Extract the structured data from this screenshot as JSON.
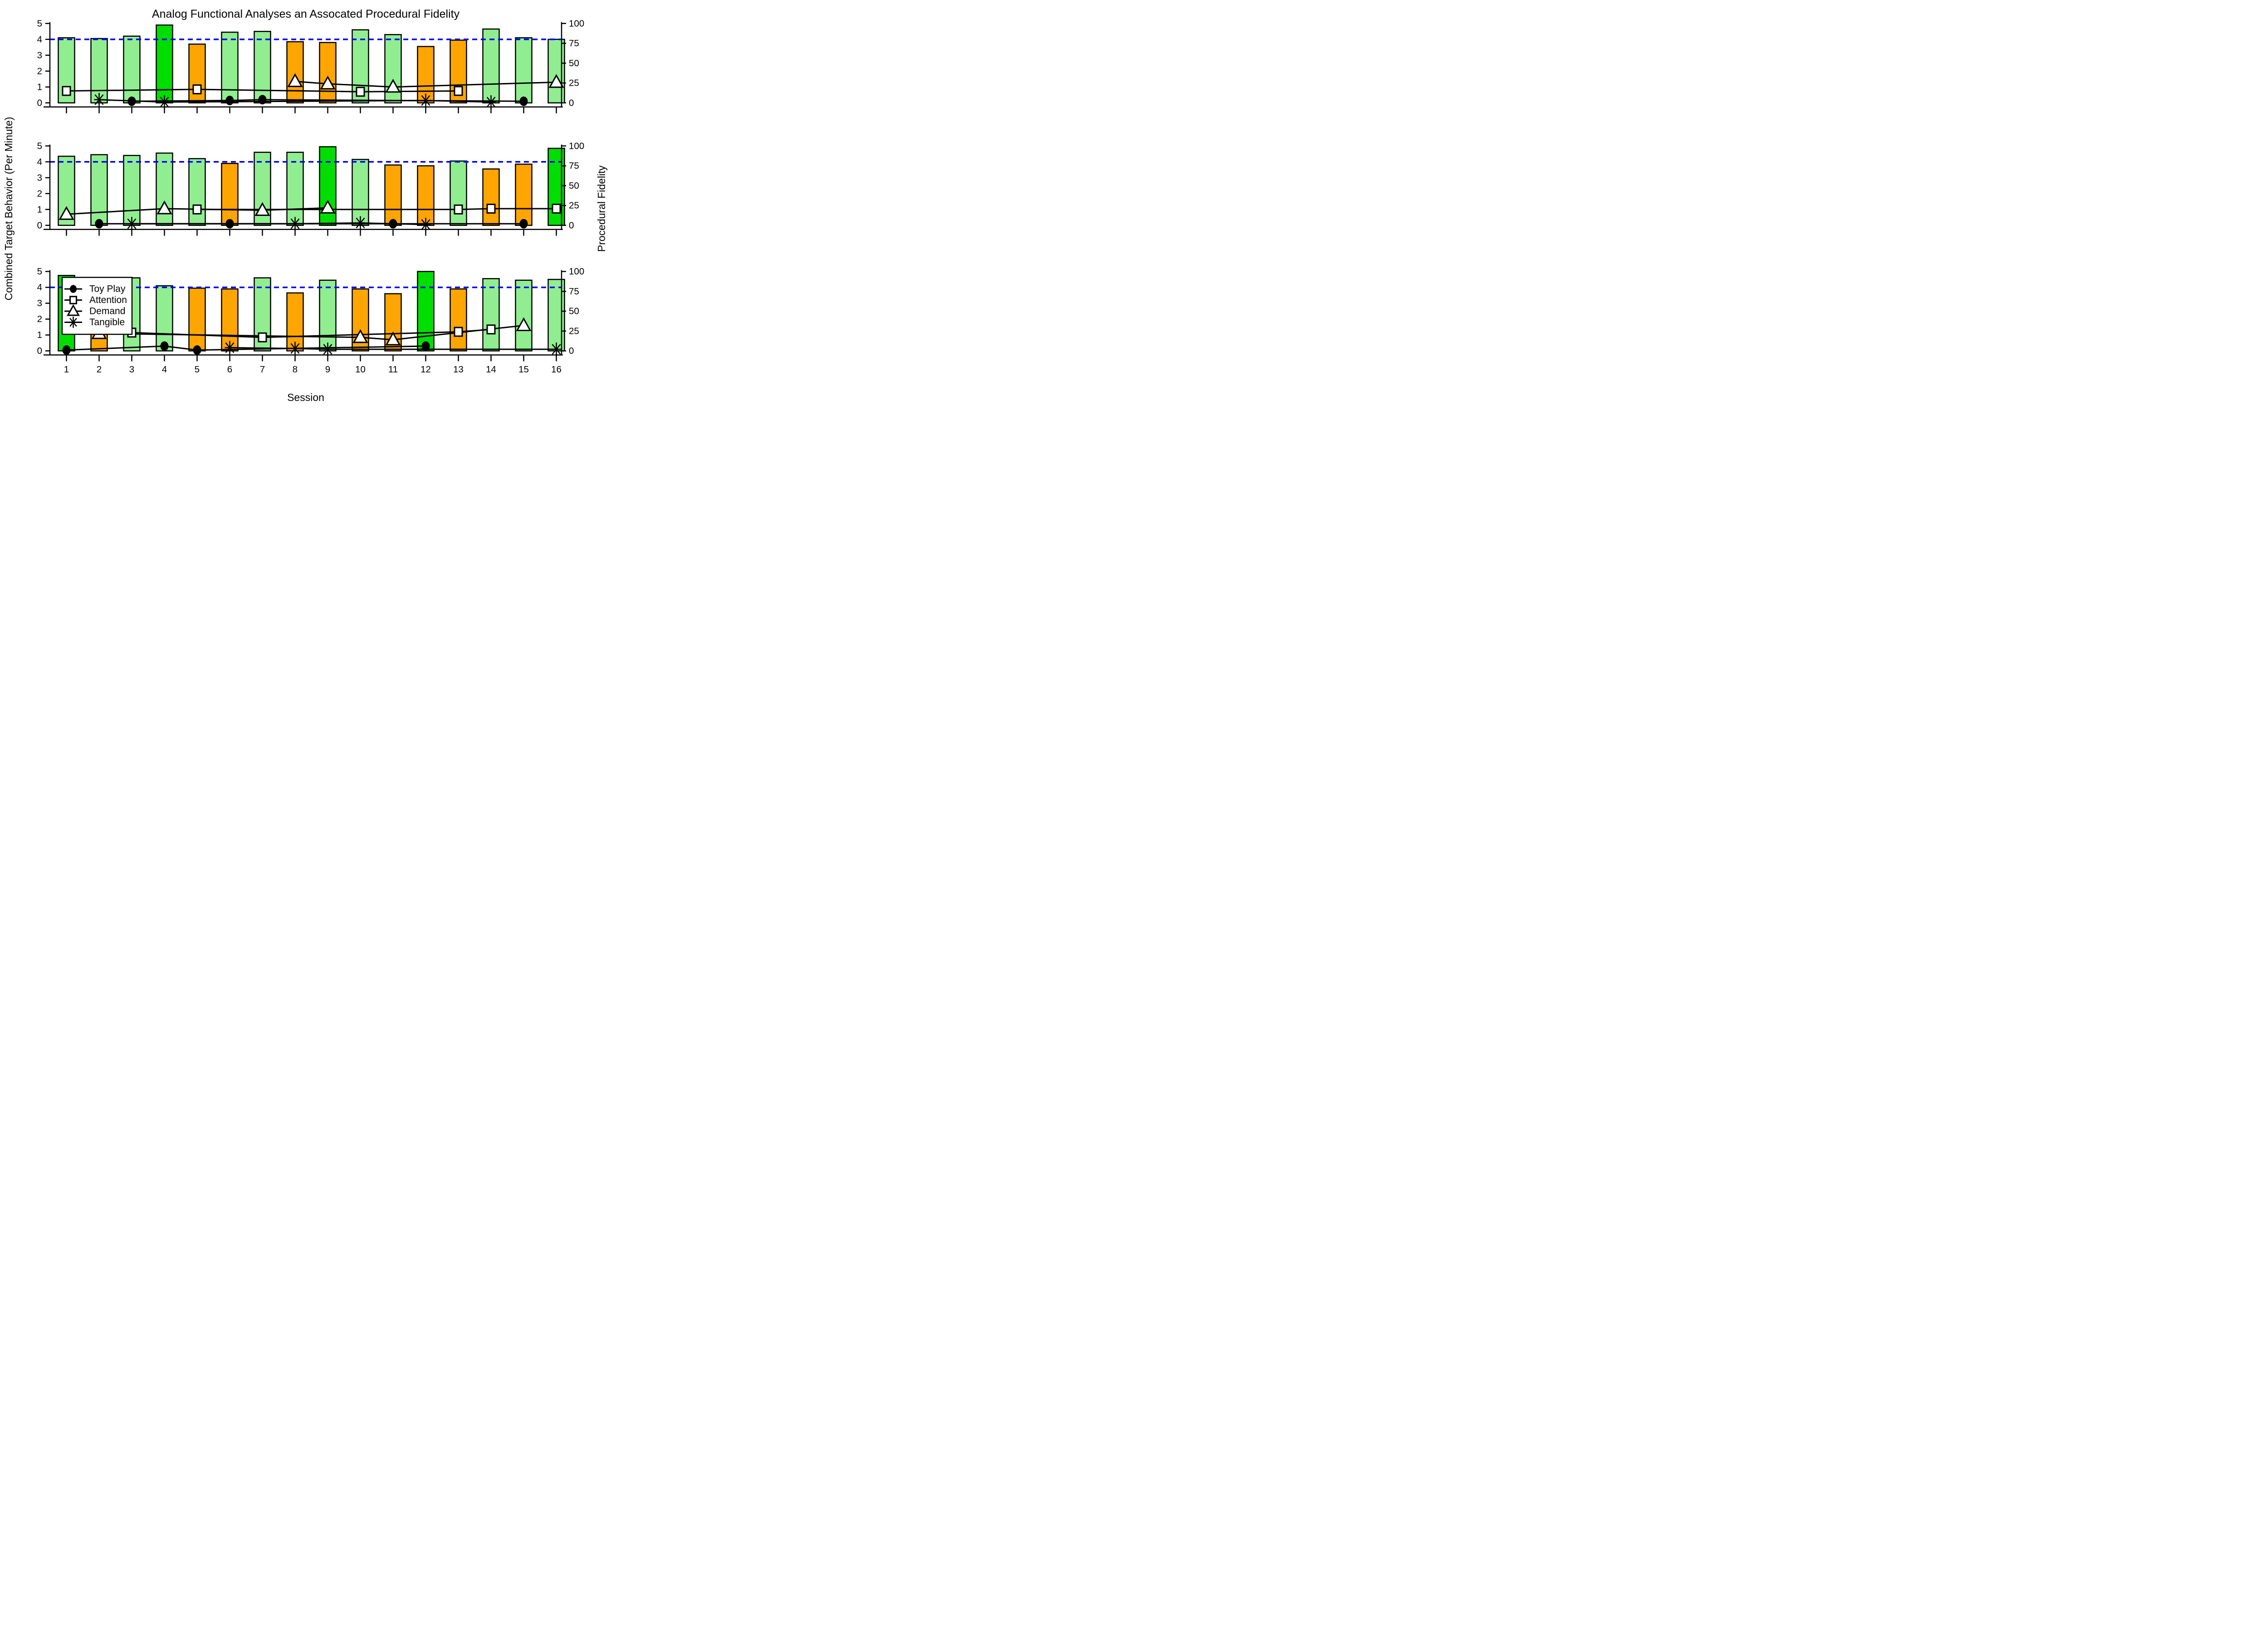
{
  "title": "Analog Functional Analyses an Assocated Procedural Fidelity",
  "axes": {
    "x_label": "Session",
    "y_left_label": "Combined Target Behavior (Per Minute)",
    "y_right_label": "Procedural Fidelity",
    "x_ticks": [
      "1",
      "2",
      "3",
      "4",
      "5",
      "6",
      "7",
      "8",
      "9",
      "10",
      "11",
      "12",
      "13",
      "14",
      "15",
      "16"
    ],
    "y_left_ticks": [
      0,
      1,
      2,
      3,
      4,
      5
    ],
    "y_right_ticks": [
      0,
      25,
      50,
      75,
      100
    ]
  },
  "colors": {
    "baseline_bar": "#90EE90",
    "highlight_bar": "#00DE00",
    "test_bar": "#FFA500",
    "criterion_line": "#0000FF",
    "series_line": "#000000"
  },
  "chart_data": {
    "type": "bar",
    "x": [
      1,
      2,
      3,
      4,
      5,
      6,
      7,
      8,
      9,
      10,
      11,
      12,
      13,
      14,
      15,
      16
    ],
    "ylim_left": [
      0,
      5
    ],
    "ylim_right": [
      0,
      100
    ],
    "criterion_value": 4,
    "legend": {
      "position": "panel-3-upper-left",
      "items": [
        {
          "label": "Toy Play",
          "marker": "circle"
        },
        {
          "label": "Attention",
          "marker": "square"
        },
        {
          "label": "Demand",
          "marker": "triangle"
        },
        {
          "label": "Tangible",
          "marker": "asterisk"
        }
      ]
    },
    "panels": [
      {
        "id": "panel-1",
        "bars": {
          "values": [
            4.1,
            4.05,
            4.2,
            4.9,
            3.7,
            4.45,
            4.5,
            3.85,
            3.8,
            4.6,
            4.3,
            3.55,
            3.95,
            4.65,
            4.1,
            4.0
          ],
          "colors": [
            "green",
            "green",
            "green",
            "bright",
            "orange",
            "green",
            "green",
            "orange",
            "orange",
            "green",
            "green",
            "orange",
            "orange",
            "green",
            "green",
            "green"
          ]
        },
        "series": [
          {
            "name": "Toy Play",
            "marker": "circle",
            "points": [
              [
                3,
                0.1
              ],
              [
                6,
                0.15
              ],
              [
                7,
                0.2
              ],
              [
                15,
                0.1
              ]
            ]
          },
          {
            "name": "Attention",
            "marker": "square",
            "points": [
              [
                1,
                0.75
              ],
              [
                5,
                0.85
              ],
              [
                10,
                0.7
              ],
              [
                13,
                0.75
              ]
            ]
          },
          {
            "name": "Demand",
            "marker": "triangle",
            "points": [
              [
                8,
                1.35
              ],
              [
                9,
                1.2
              ],
              [
                11,
                1.0
              ],
              [
                16,
                1.3
              ]
            ]
          },
          {
            "name": "Tangible",
            "marker": "asterisk",
            "points": [
              [
                2,
                0.2
              ],
              [
                4,
                0.05
              ],
              [
                12,
                0.15
              ],
              [
                14,
                0.05
              ]
            ]
          }
        ]
      },
      {
        "id": "panel-2",
        "bars": {
          "values": [
            4.35,
            4.45,
            4.4,
            4.55,
            4.2,
            3.9,
            4.6,
            4.6,
            4.95,
            4.15,
            3.8,
            3.75,
            4.05,
            3.55,
            3.85,
            4.85
          ],
          "colors": [
            "green",
            "green",
            "green",
            "green",
            "green",
            "orange",
            "green",
            "green",
            "bright",
            "green",
            "orange",
            "orange",
            "green",
            "orange",
            "orange",
            "bright"
          ]
        },
        "series": [
          {
            "name": "Toy Play",
            "marker": "circle",
            "points": [
              [
                2,
                0.1
              ],
              [
                6,
                0.1
              ],
              [
                11,
                0.1
              ],
              [
                15,
                0.1
              ]
            ]
          },
          {
            "name": "Attention",
            "marker": "square",
            "points": [
              [
                5,
                1.0
              ],
              [
                13,
                1.0
              ],
              [
                14,
                1.05
              ],
              [
                16,
                1.05
              ]
            ]
          },
          {
            "name": "Demand",
            "marker": "triangle",
            "points": [
              [
                1,
                0.7
              ],
              [
                4,
                1.05
              ],
              [
                7,
                0.95
              ],
              [
                9,
                1.1
              ]
            ]
          },
          {
            "name": "Tangible",
            "marker": "asterisk",
            "points": [
              [
                3,
                0.1
              ],
              [
                8,
                0.1
              ],
              [
                10,
                0.15
              ],
              [
                12,
                0.05
              ]
            ]
          }
        ]
      },
      {
        "id": "panel-3",
        "bars": {
          "values": [
            4.75,
            4.3,
            4.6,
            4.1,
            3.95,
            3.9,
            4.6,
            3.65,
            4.45,
            3.9,
            3.6,
            5.0,
            3.9,
            4.55,
            4.45,
            4.5
          ],
          "colors": [
            "bright",
            "orange",
            "green",
            "green",
            "orange",
            "orange",
            "green",
            "orange",
            "green",
            "orange",
            "orange",
            "bright",
            "orange",
            "green",
            "green",
            "green"
          ]
        },
        "series": [
          {
            "name": "Toy Play",
            "marker": "circle",
            "points": [
              [
                1,
                0.05
              ],
              [
                4,
                0.3
              ],
              [
                5,
                0.05
              ],
              [
                12,
                0.3
              ]
            ]
          },
          {
            "name": "Attention",
            "marker": "square",
            "points": [
              [
                3,
                1.15
              ],
              [
                7,
                0.85
              ],
              [
                13,
                1.2
              ],
              [
                14,
                1.35
              ]
            ]
          },
          {
            "name": "Demand",
            "marker": "triangle",
            "points": [
              [
                2,
                1.1
              ],
              [
                10,
                0.85
              ],
              [
                11,
                0.7
              ],
              [
                15,
                1.6
              ]
            ]
          },
          {
            "name": "Tangible",
            "marker": "asterisk",
            "points": [
              [
                6,
                0.2
              ],
              [
                8,
                0.15
              ],
              [
                9,
                0.1
              ],
              [
                16,
                0.1
              ]
            ]
          }
        ]
      }
    ]
  }
}
